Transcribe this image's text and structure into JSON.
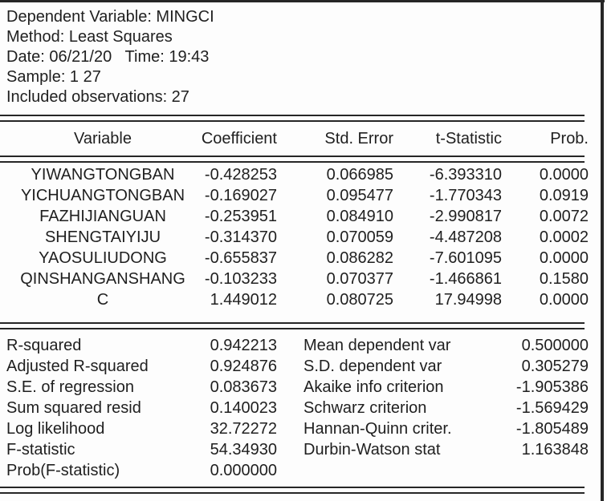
{
  "header": {
    "dependent_variable_line": "Dependent Variable: MINGCI",
    "method_line": "Method: Least Squares",
    "date_time_line": "Date: 06/21/20   Time: 19:43",
    "sample_line": "Sample: 1 27",
    "observations_line": "Included observations: 27"
  },
  "coef_table": {
    "columns": [
      "Variable",
      "Coefficient",
      "Std. Error",
      "t-Statistic",
      "Prob."
    ],
    "rows": [
      [
        "YIWANGTONGBAN",
        "-0.428253",
        "0.066985",
        "-6.393310",
        "0.0000"
      ],
      [
        "YICHUANGTONGBAN",
        "-0.169027",
        "0.095477",
        "-1.770343",
        "0.0919"
      ],
      [
        "FAZHIJIANGUAN",
        "-0.253951",
        "0.084910",
        "-2.990817",
        "0.0072"
      ],
      [
        "SHENGTAIYIJU",
        "-0.314370",
        "0.070059",
        "-4.487208",
        "0.0002"
      ],
      [
        "YAOSULIUDONG",
        "-0.655837",
        "0.086282",
        "-7.601095",
        "0.0000"
      ],
      [
        "QINSHANGANSHANG",
        "-0.103233",
        "0.070377",
        "-1.466861",
        "0.1580"
      ],
      [
        "C",
        "1.449012",
        "0.080725",
        "17.94998",
        "0.0000"
      ]
    ]
  },
  "summary_table": {
    "rows": [
      [
        "R-squared",
        "0.942213",
        "Mean dependent var",
        "0.500000"
      ],
      [
        "Adjusted R-squared",
        "0.924876",
        "S.D. dependent var",
        "0.305279"
      ],
      [
        "S.E. of regression",
        "0.083673",
        "Akaike info criterion",
        "-1.905386"
      ],
      [
        "Sum squared resid",
        "0.140023",
        "Schwarz criterion",
        "-1.569429"
      ],
      [
        "Log likelihood",
        "32.72272",
        "Hannan-Quinn criter.",
        "-1.805489"
      ],
      [
        "F-statistic",
        "54.34930",
        "Durbin-Watson stat",
        "1.163848"
      ],
      [
        "Prob(F-statistic)",
        "0.000000",
        "",
        ""
      ]
    ]
  },
  "colors": {
    "text": "#1f1f1f",
    "rule": "#262626",
    "background": "#fdfdfd"
  }
}
